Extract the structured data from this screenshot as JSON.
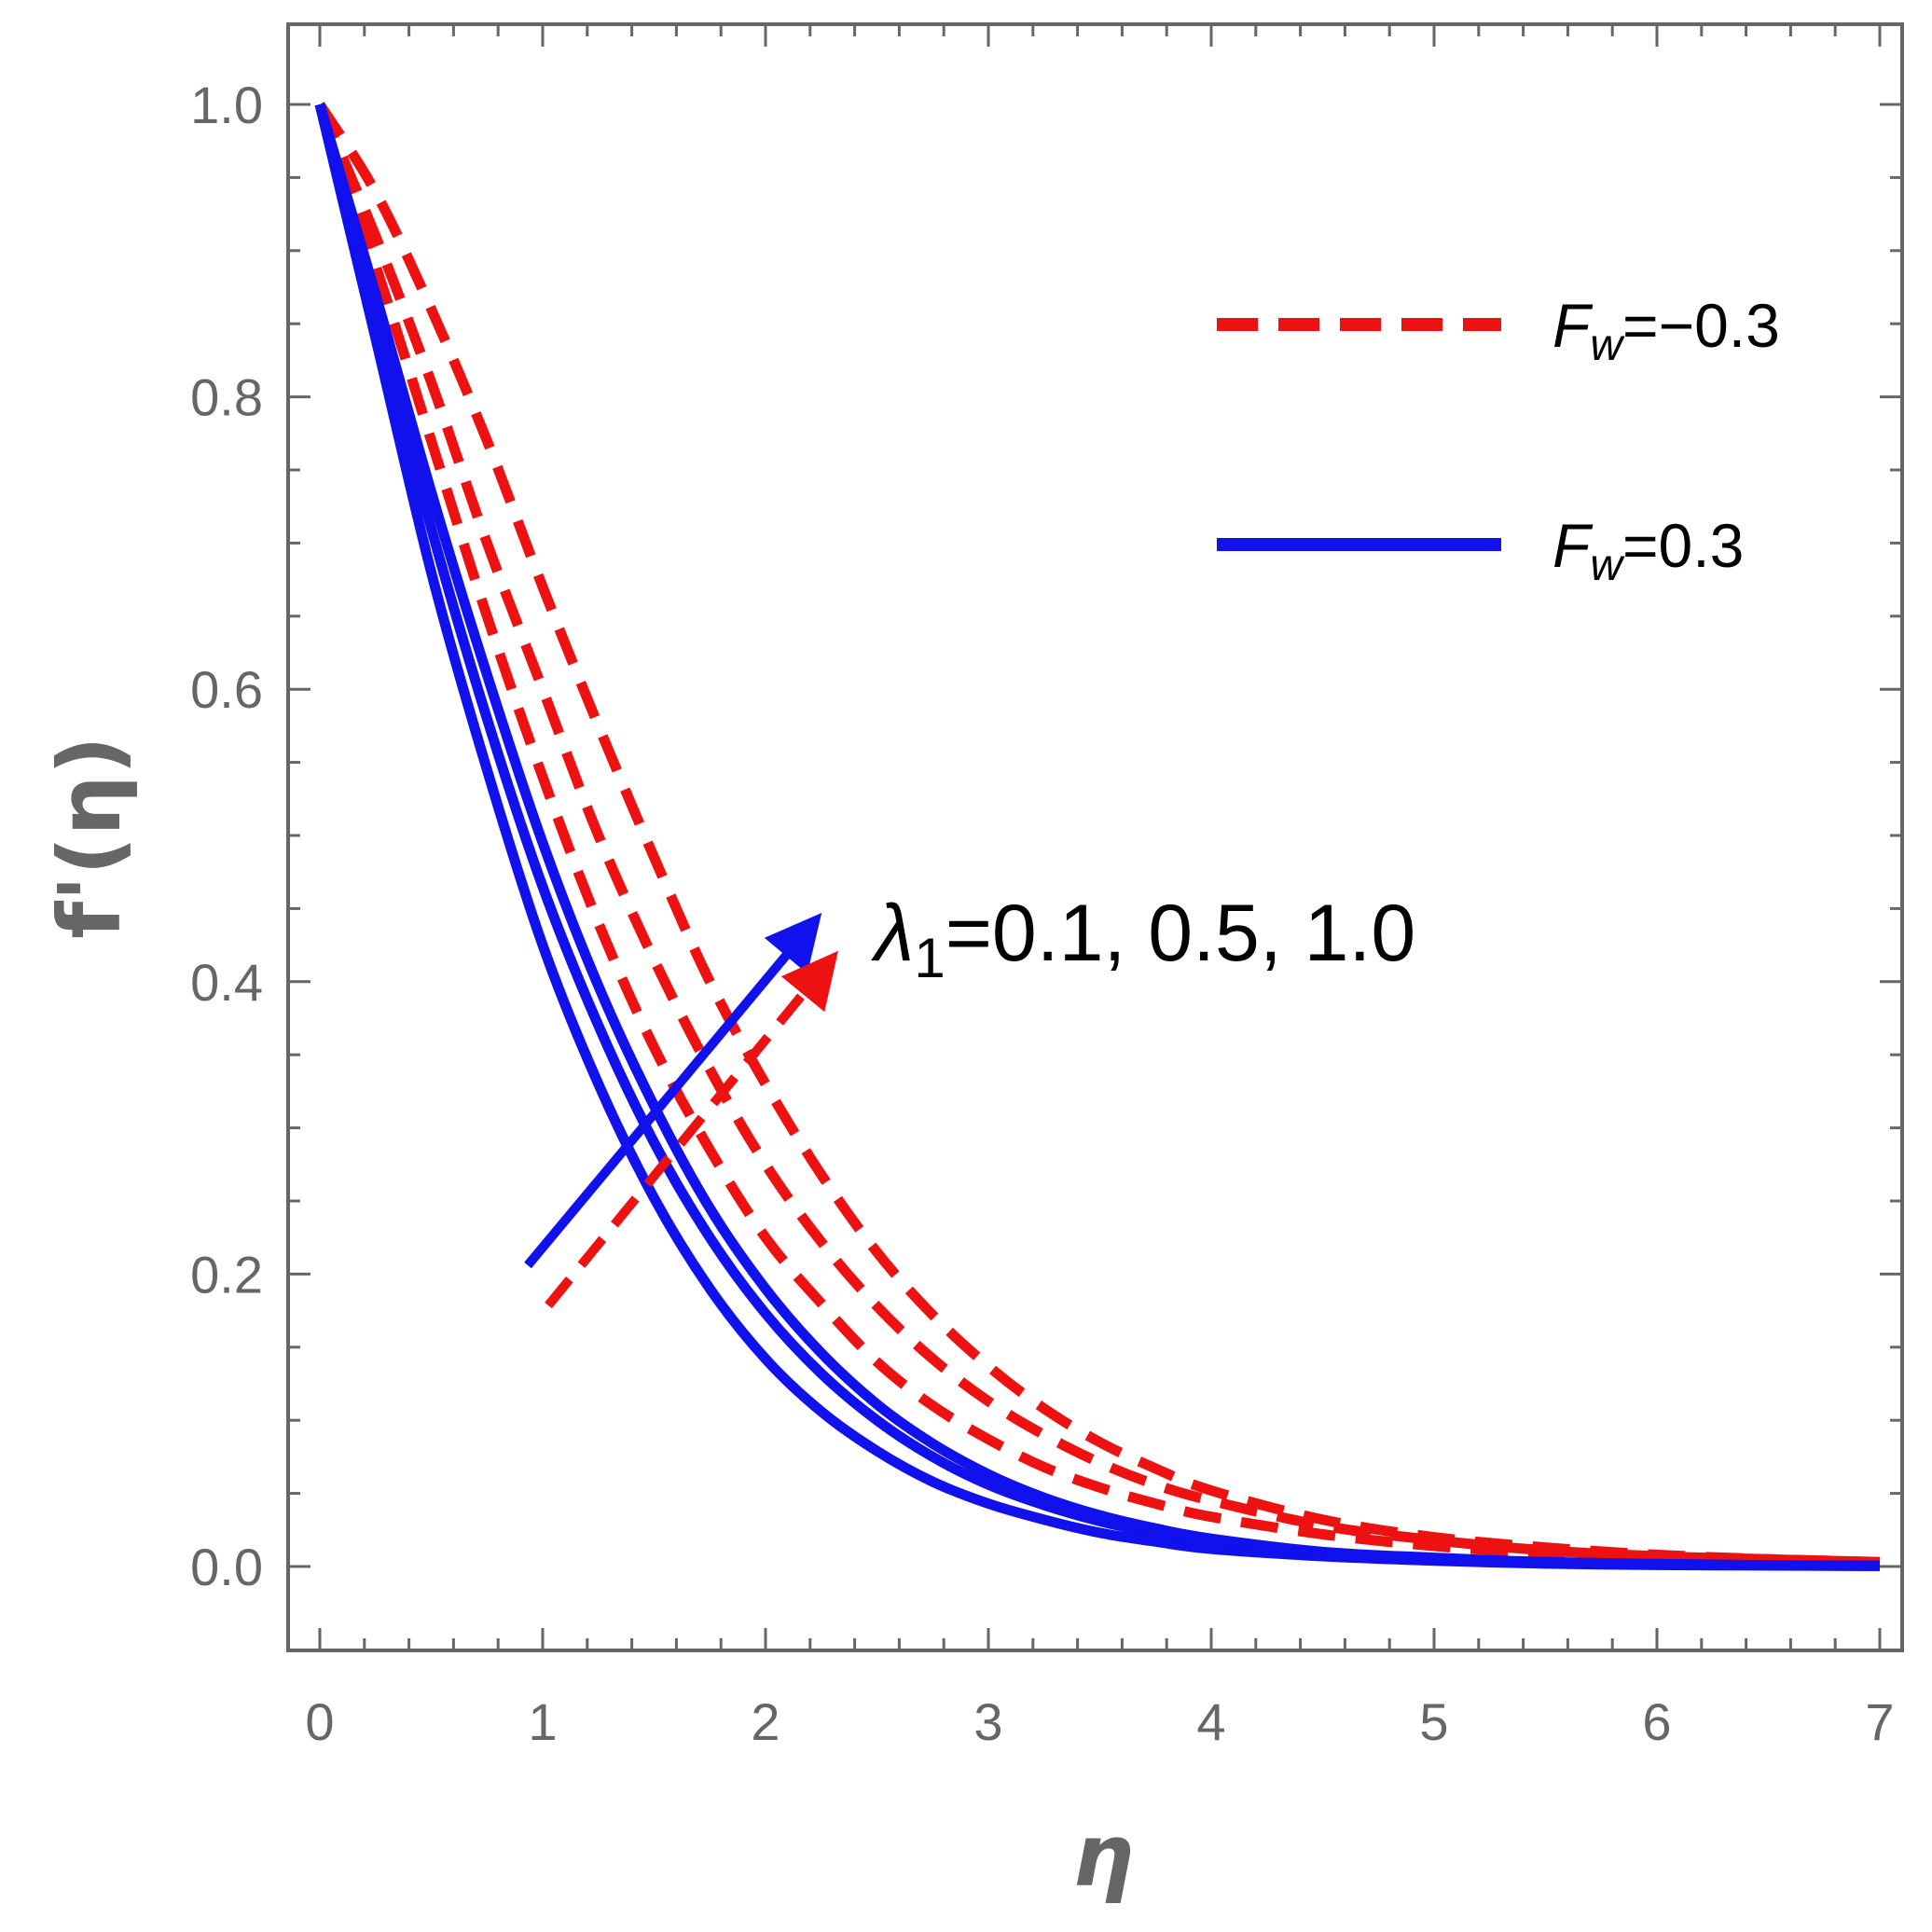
{
  "chart_data": {
    "type": "line",
    "title": "",
    "xlabel": "η",
    "ylabel": "f'(η)",
    "xlim": [
      0,
      7
    ],
    "ylim": [
      0,
      1.0
    ],
    "x_ticks": [
      "0",
      "1",
      "2",
      "3",
      "4",
      "5",
      "6",
      "7"
    ],
    "y_ticks": [
      "0.0",
      "0.2",
      "0.4",
      "0.6",
      "0.8",
      "1.0"
    ],
    "grid": false,
    "legend_position": "top-right",
    "legend": [
      {
        "label_main": "F",
        "label_sub": "w",
        "label_rest": "=−0.3",
        "style": "dashed",
        "color": "#ee1111"
      },
      {
        "label_main": "F",
        "label_sub": "w",
        "label_rest": "=0.3",
        "style": "solid",
        "color": "#1111ee"
      }
    ],
    "annotation": {
      "symbol": "λ",
      "sub": "1",
      "rest": "=0.1, 0.5, 1.0",
      "arrow_direction": "increasing"
    },
    "x": [
      0,
      0.25,
      0.5,
      0.75,
      1.0,
      1.25,
      1.5,
      1.75,
      2.0,
      2.25,
      2.5,
      2.75,
      3.0,
      3.25,
      3.5,
      3.75,
      4.0,
      4.5,
      5.0,
      5.5,
      6.0,
      6.5,
      7.0
    ],
    "series": [
      {
        "group": "F_w=-0.3",
        "lambda1": 0.1,
        "style": "dashed",
        "color": "#ee1111",
        "values": [
          1.0,
          0.89,
          0.77,
          0.65,
          0.54,
          0.44,
          0.355,
          0.285,
          0.225,
          0.18,
          0.14,
          0.11,
          0.087,
          0.068,
          0.054,
          0.043,
          0.034,
          0.022,
          0.014,
          0.009,
          0.006,
          0.004,
          0.002
        ]
      },
      {
        "group": "F_w=-0.3",
        "lambda1": 0.5,
        "style": "dashed",
        "color": "#ee1111",
        "values": [
          1.0,
          0.91,
          0.81,
          0.7,
          0.6,
          0.5,
          0.415,
          0.34,
          0.275,
          0.222,
          0.178,
          0.142,
          0.113,
          0.09,
          0.071,
          0.056,
          0.045,
          0.028,
          0.018,
          0.011,
          0.007,
          0.005,
          0.003
        ]
      },
      {
        "group": "F_w=-0.3",
        "lambda1": 1.0,
        "style": "dashed",
        "color": "#ee1111",
        "values": [
          1.0,
          0.94,
          0.86,
          0.77,
          0.67,
          0.575,
          0.485,
          0.4,
          0.33,
          0.268,
          0.215,
          0.172,
          0.137,
          0.108,
          0.085,
          0.067,
          0.052,
          0.032,
          0.02,
          0.013,
          0.008,
          0.005,
          0.003
        ]
      },
      {
        "group": "F_w=0.3",
        "lambda1": 0.1,
        "style": "solid",
        "color": "#1111ee",
        "values": [
          1.0,
          0.84,
          0.68,
          0.545,
          0.425,
          0.33,
          0.252,
          0.19,
          0.142,
          0.106,
          0.079,
          0.058,
          0.043,
          0.032,
          0.023,
          0.017,
          0.012,
          0.007,
          0.004,
          0.002,
          0.001,
          0.0007,
          0.0004
        ]
      },
      {
        "group": "F_w=0.3",
        "lambda1": 0.5,
        "style": "solid",
        "color": "#1111ee",
        "values": [
          1.0,
          0.855,
          0.71,
          0.58,
          0.465,
          0.37,
          0.29,
          0.225,
          0.173,
          0.132,
          0.1,
          0.075,
          0.056,
          0.042,
          0.031,
          0.023,
          0.017,
          0.009,
          0.005,
          0.003,
          0.0015,
          0.0008,
          0.0004
        ]
      },
      {
        "group": "F_w=0.3",
        "lambda1": 1.0,
        "style": "solid",
        "color": "#1111ee",
        "values": [
          1.0,
          0.87,
          0.735,
          0.61,
          0.495,
          0.397,
          0.315,
          0.245,
          0.19,
          0.146,
          0.111,
          0.084,
          0.063,
          0.047,
          0.035,
          0.026,
          0.019,
          0.01,
          0.006,
          0.003,
          0.0017,
          0.0009,
          0.0005
        ]
      }
    ]
  }
}
